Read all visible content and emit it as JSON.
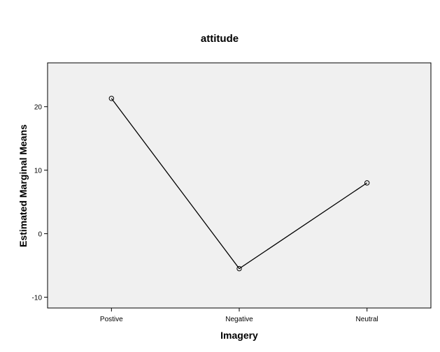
{
  "chart_data": {
    "type": "line",
    "title": "attitude",
    "xlabel": "Imagery",
    "ylabel": "Estimated Marginal Means",
    "categories": [
      "Postive",
      "Negative",
      "Neutral"
    ],
    "series": [
      {
        "values": [
          21.3,
          -5.5,
          8.0
        ]
      }
    ],
    "ylim": [
      -11.7,
      26.9
    ],
    "yticks": [
      -10,
      0,
      10,
      20
    ],
    "grid": false,
    "plot_background": "#f0f0f0",
    "line_color": "#000000",
    "marker": "open-circle"
  }
}
